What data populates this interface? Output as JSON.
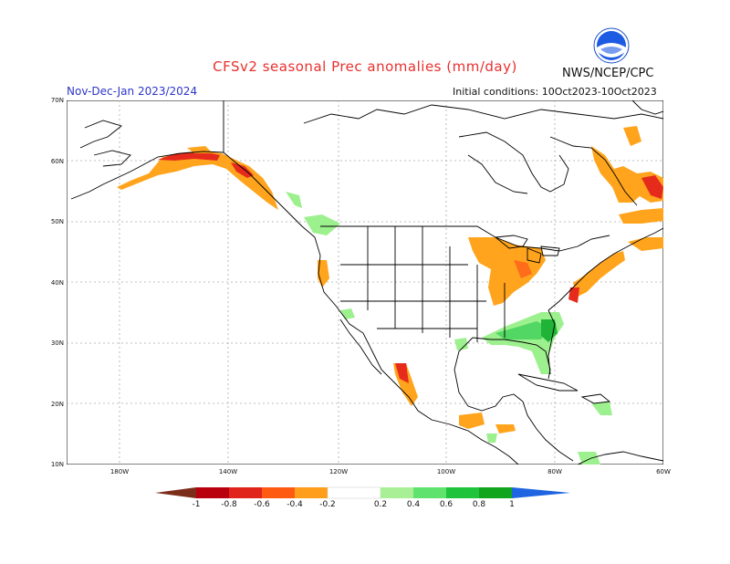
{
  "header": {
    "title": "CFSv2 seasonal Prec anomalies (mm/day)",
    "period": "Nov-Dec-Jan 2023/2024",
    "initial_conditions": "Initial conditions: 10Oct2023-10Oct2023",
    "org": "NWS/NCEP/CPC",
    "logo_text": "NOAA"
  },
  "map": {
    "lat_labels": [
      "70N",
      "60N",
      "50N",
      "40N",
      "30N",
      "20N",
      "10N"
    ],
    "lon_labels": [
      "180W",
      "140W",
      "120W",
      "100W",
      "80W",
      "60W"
    ]
  },
  "colorbar": {
    "labels": [
      "-1",
      "-0.8",
      "-0.6",
      "-0.4",
      "-0.2",
      "0.2",
      "0.4",
      "0.6",
      "0.8",
      "1"
    ],
    "colors": [
      "#7b2d1a",
      "#b8000e",
      "#e1241b",
      "#ff5a12",
      "#ff9e1a",
      "#ffffff",
      "#a8ef96",
      "#5fe36e",
      "#20c43c",
      "#11a51e",
      "#1f64e0"
    ]
  },
  "legend_colors": {
    "orange": "#ffa41c",
    "dark_orange": "#ff6c1a",
    "red": "#e62b1d",
    "light_green": "#9df08e",
    "green": "#53d764",
    "dark_green": "#1fb338"
  }
}
